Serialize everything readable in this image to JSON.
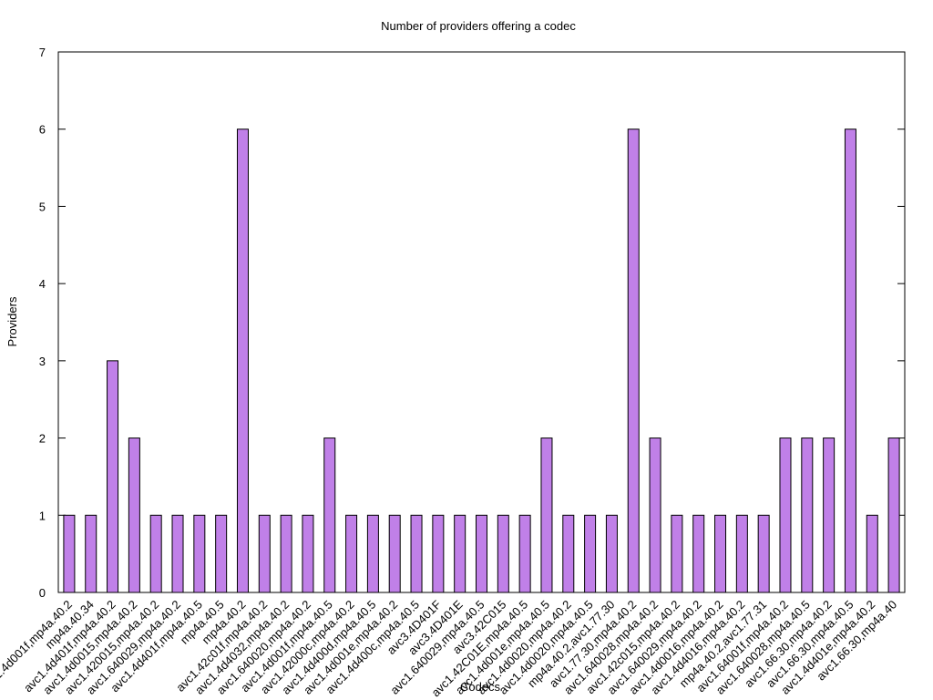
{
  "chart_data": {
    "type": "bar",
    "title": "Number of providers offering a codec",
    "x_label": "Codecs",
    "y_label": "Providers",
    "categories": [
      "avc1.4d001f,mp4a.40.2",
      "mp4a.40.34",
      "avc1.4d401f,mp4a.40.2",
      "avc1.4d0015,mp4a.40.2",
      "avc1.420015,mp4a.40.2",
      "avc1.640029,mp4a.40.2",
      "avc1.4d401f,mp4a.40.5",
      "mp4a.40.5",
      "mp4a.40.2",
      "avc1.42c01f,mp4a.40.2",
      "avc1.4d4032,mp4a.40.2",
      "avc1.640020,mp4a.40.2",
      "avc1.4d001f,mp4a.40.5",
      "avc1.42000c,mp4a.40.2",
      "avc1.4d400d,mp4a.40.5",
      "avc1.4d001e,mp4a.40.2",
      "avc1.4d400c,mp4a.40.5",
      "avc3.4D401F",
      "avc3.4D401E",
      "avc1.640029,mp4a.40.5",
      "avc3.42C015",
      "avc1.42C01E,mp4a.40.5",
      "avc1.4d001e,mp4a.40.5",
      "avc1.4d0020,mp4a.40.2",
      "avc1.4d0020,mp4a.40.5",
      "mp4a.40.2,avc1.77.30",
      "avc1.77.30,mp4a.40.2",
      "avc1.640028,mp4a.40.2",
      "avc1.42c015,mp4a.40.2",
      "avc1.640029,mp4a.40.2",
      "avc1.4d0016,mp4a.40.2",
      "avc1.4d4016,mp4a.40.2",
      "mp4a.40.2,avc1.77.31",
      "avc1.64001f,mp4a.40.2",
      "avc1.640028,mp4a.40.5",
      "avc1.66.30,mp4a.40.2",
      "avc1.66.30,mp4a.40.5",
      "avc1.4d401e,mp4a.40.2",
      "avc1.66.30,mp4a.40"
    ],
    "values": [
      1,
      1,
      3,
      2,
      1,
      1,
      1,
      1,
      6,
      1,
      1,
      1,
      2,
      1,
      1,
      1,
      1,
      1,
      1,
      1,
      1,
      1,
      2,
      1,
      1,
      1,
      6,
      2,
      1,
      1,
      1,
      1,
      1,
      2,
      2,
      2,
      6,
      1,
      2
    ],
    "color": "#c080e8",
    "ylim": [
      0,
      7
    ],
    "yticks": [
      0,
      1,
      2,
      3,
      4,
      5,
      6,
      7
    ]
  }
}
